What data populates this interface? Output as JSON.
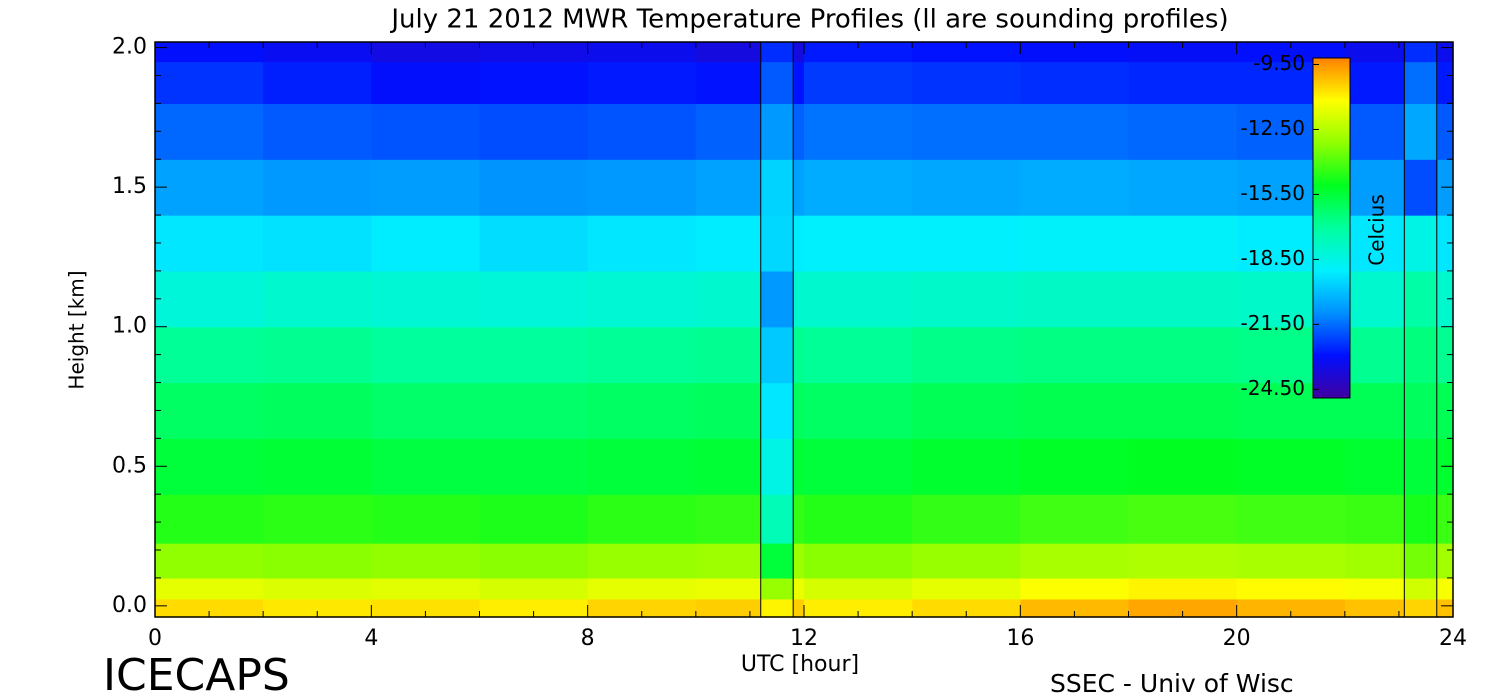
{
  "chart_data": {
    "type": "heatmap",
    "title": "July 21 2012 MWR Temperature Profiles (ll are sounding profiles)",
    "xlabel": "UTC [hour]",
    "ylabel": "Height [km]",
    "colorbar_label": "Celcius",
    "footer_left": "ICECAPS",
    "footer_right": "SSEC - Univ of Wisc",
    "x": [
      1,
      3,
      5,
      7,
      9,
      11,
      13,
      15,
      17,
      19,
      21,
      23
    ],
    "heights": [
      0,
      0.05,
      0.15,
      0.3,
      0.5,
      0.7,
      0.9,
      1.1,
      1.3,
      1.5,
      1.7,
      1.9,
      2.0
    ],
    "values": [
      [
        -10.6,
        -11.6,
        -13.1,
        -14.6,
        -15.5,
        -16.1,
        -16.9,
        -18.2,
        -19.2,
        -20.6,
        -21.6,
        -22.4,
        -23.0
      ],
      [
        -10.8,
        -11.8,
        -13.2,
        -14.5,
        -15.4,
        -16.0,
        -16.8,
        -18.0,
        -19.3,
        -20.8,
        -21.8,
        -22.7,
        -23.2
      ],
      [
        -10.7,
        -11.7,
        -13.1,
        -14.6,
        -15.6,
        -16.2,
        -17.0,
        -18.1,
        -19.1,
        -20.7,
        -21.9,
        -23.0,
        -23.5
      ],
      [
        -10.9,
        -11.9,
        -13.2,
        -14.7,
        -15.6,
        -16.2,
        -17.0,
        -18.2,
        -19.4,
        -20.9,
        -22.0,
        -22.9,
        -23.4
      ],
      [
        -10.5,
        -11.6,
        -13.0,
        -14.5,
        -15.5,
        -16.1,
        -16.9,
        -18.1,
        -19.2,
        -20.8,
        -21.9,
        -22.8,
        -23.3
      ],
      [
        -10.4,
        -11.5,
        -12.9,
        -14.4,
        -15.4,
        -16.0,
        -16.8,
        -18.0,
        -19.1,
        -20.6,
        -21.7,
        -22.9,
        -23.6
      ],
      [
        -10.9,
        -11.9,
        -13.2,
        -14.6,
        -15.5,
        -16.1,
        -16.9,
        -18.0,
        -19.0,
        -20.4,
        -21.4,
        -22.3,
        -22.8
      ],
      [
        -10.6,
        -11.6,
        -13.0,
        -14.4,
        -15.3,
        -15.9,
        -16.7,
        -17.9,
        -19.0,
        -20.5,
        -21.5,
        -22.4,
        -22.9
      ],
      [
        -10.1,
        -11.2,
        -12.7,
        -14.2,
        -15.2,
        -15.8,
        -16.6,
        -17.8,
        -18.9,
        -20.4,
        -21.5,
        -22.5,
        -23.0
      ],
      [
        -9.8,
        -11.0,
        -12.6,
        -14.1,
        -15.1,
        -15.8,
        -16.6,
        -17.8,
        -18.9,
        -20.5,
        -21.6,
        -22.6,
        -23.1
      ],
      [
        -10.0,
        -11.1,
        -12.7,
        -14.2,
        -15.2,
        -15.9,
        -16.7,
        -17.9,
        -19.1,
        -20.6,
        -21.7,
        -22.6,
        -23.0
      ],
      [
        -10.2,
        -11.3,
        -12.8,
        -14.3,
        -15.3,
        -15.9,
        -16.8,
        -18.0,
        -19.2,
        -20.7,
        -21.8,
        -22.8,
        -23.3
      ]
    ],
    "soundings": [
      {
        "xrange": [
          11.2,
          11.8
        ],
        "values": [
          -11,
          -13,
          -15.5,
          -17.5,
          -18.5,
          -19.2,
          -19.8,
          -20.8,
          -19.5,
          -19.6,
          -20.8,
          -21.8,
          -22.5
        ]
      },
      {
        "xrange": [
          23.1,
          23.7
        ],
        "values": [
          -10.5,
          -12,
          -13.5,
          -14.8,
          -15.5,
          -16,
          -16.5,
          -17.2,
          -18.5,
          -22,
          -20.5,
          -21.5,
          -22.5
        ]
      }
    ],
    "xlim": [
      0,
      24
    ],
    "ylim": [
      -0.04,
      2.02
    ],
    "xticks": [
      0,
      4,
      8,
      12,
      16,
      20,
      24
    ],
    "yticks": [
      {
        "value": 0,
        "label": "0.0"
      },
      0.5,
      {
        "value": 1,
        "label": "1.0"
      },
      1.5,
      {
        "value": 2,
        "label": "2.0"
      }
    ],
    "xticks_minor": [
      1,
      2,
      3,
      5,
      6,
      7,
      9,
      10,
      11,
      13,
      14,
      15,
      17,
      18,
      19,
      21,
      22,
      23
    ],
    "yticks_minor": [
      0.1,
      0.2,
      0.3,
      0.4,
      0.6,
      0.7,
      0.8,
      0.9,
      1.1,
      1.2,
      1.3,
      1.4,
      1.6,
      1.7,
      1.8,
      1.9
    ],
    "clim": [
      -24.9,
      -9.2
    ],
    "cticks": [
      {
        "value": -9.5,
        "label": "-9.50"
      },
      {
        "value": -12.5,
        "label": "-12.50"
      },
      {
        "value": -15.5,
        "label": "-15.50"
      },
      {
        "value": -18.5,
        "label": "-18.50"
      },
      {
        "value": -21.5,
        "label": "-21.50"
      },
      {
        "value": -24.5,
        "label": "-24.50"
      }
    ],
    "colormap": [
      "#4000a0",
      "#0010ff",
      "#0090ff",
      "#00f0ff",
      "#00ffa0",
      "#00ff20",
      "#90ff00",
      "#ffff00",
      "#ff8000"
    ]
  }
}
